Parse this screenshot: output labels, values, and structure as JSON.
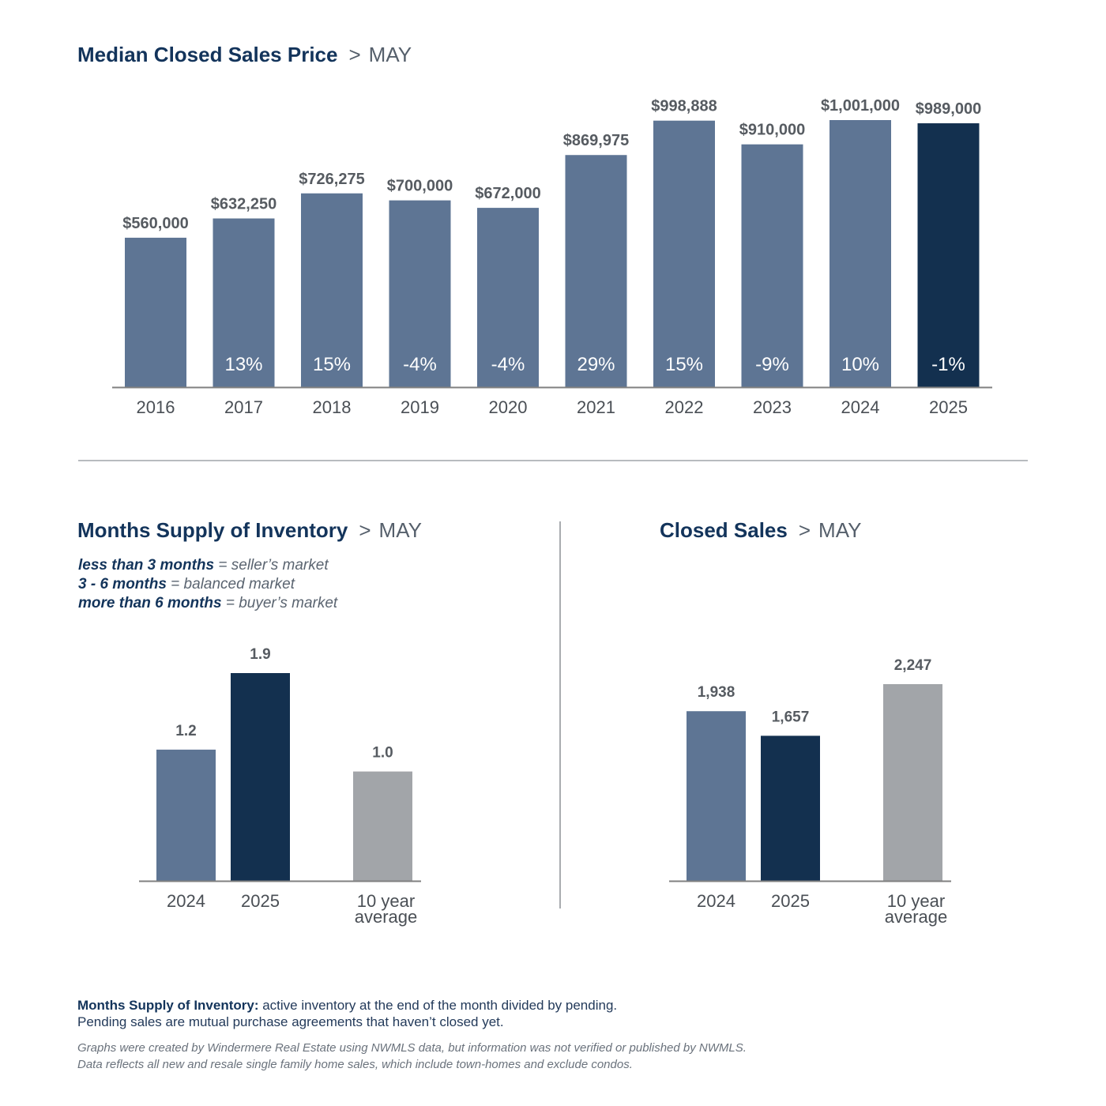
{
  "median": {
    "title": "Median Closed Sales Price",
    "separator": ">",
    "month": "MAY"
  },
  "supply": {
    "title": "Months Supply of Inventory",
    "separator": ">",
    "month": "MAY",
    "legend": [
      {
        "strong": "less than 3 months",
        "rest": " = seller’s market"
      },
      {
        "strong": "3 - 6 months",
        "rest": " = balanced market"
      },
      {
        "strong": "more than 6 months",
        "rest": " = buyer’s market"
      }
    ]
  },
  "sales": {
    "title": "Closed Sales",
    "separator": ">",
    "month": "MAY"
  },
  "footnote": {
    "term": "Months Supply of Inventory:",
    "definition": " active inventory at the end of the month divided by pending.",
    "line2": "Pending sales are mutual purchase agreements that haven’t closed yet.",
    "disclaimer1": "Graphs were created by Windermere Real Estate using NWMLS data, but information was not verified or published by NWMLS.",
    "disclaimer2": "Data reflects all new and resale single family home sales, which include town-homes and exclude condos."
  },
  "colors": {
    "prior": "#5e7594",
    "current": "#13304f",
    "average": "#a2a5a9",
    "axis": "#808080",
    "label": "#565b61",
    "pct": "#ffffff"
  },
  "chart_data": [
    {
      "type": "bar",
      "title": "Median Closed Sales Price",
      "categories": [
        "2016",
        "2017",
        "2018",
        "2019",
        "2020",
        "2021",
        "2022",
        "2023",
        "2024",
        "2025"
      ],
      "values": [
        560000,
        632250,
        726275,
        700000,
        672000,
        869975,
        998888,
        910000,
        1001000,
        989000
      ],
      "value_labels": [
        "$560,000",
        "$632,250",
        "$726,275",
        "$700,000",
        "$672,000",
        "$869,975",
        "$998,888",
        "$910,000",
        "$1,001,000",
        "$989,000"
      ],
      "change_labels": [
        "",
        "13%",
        "15%",
        "-4%",
        "-4%",
        "29%",
        "15%",
        "-9%",
        "10%",
        "-1%"
      ],
      "highlight": [
        false,
        false,
        false,
        false,
        false,
        false,
        false,
        false,
        false,
        true
      ],
      "grid": false
    },
    {
      "type": "bar",
      "title": "Months Supply of Inventory",
      "categories": [
        "2024",
        "2025",
        "10 year average"
      ],
      "values": [
        1.2,
        1.9,
        1.0
      ],
      "value_labels": [
        "1.2",
        "1.9",
        "1.0"
      ],
      "grid": false
    },
    {
      "type": "bar",
      "title": "Closed Sales",
      "categories": [
        "2024",
        "2025",
        "10 year average"
      ],
      "values": [
        1938,
        1657,
        2247
      ],
      "value_labels": [
        "1,938",
        "1,657",
        "2,247"
      ],
      "grid": false
    }
  ]
}
